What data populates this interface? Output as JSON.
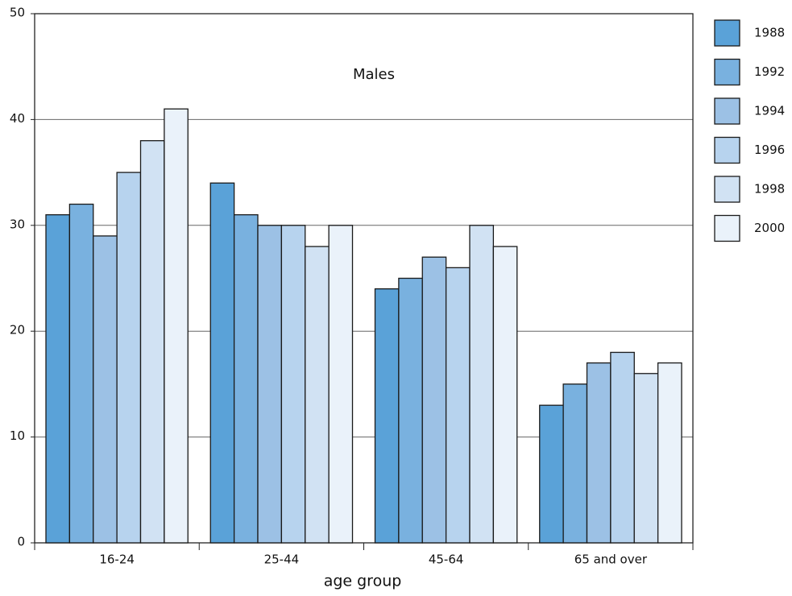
{
  "chart_data": {
    "type": "bar",
    "title": "Males",
    "x_label": "age group",
    "categories": [
      "16-24",
      "25-44",
      "45-64",
      "65 and over"
    ],
    "series": [
      {
        "name": "1988",
        "color": "#5aa2d8",
        "values": [
          31,
          34,
          24,
          13
        ]
      },
      {
        "name": "1992",
        "color": "#79b1df",
        "values": [
          32,
          31,
          25,
          15
        ]
      },
      {
        "name": "1994",
        "color": "#9cc1e5",
        "values": [
          29,
          30,
          27,
          17
        ]
      },
      {
        "name": "1996",
        "color": "#b7d3ee",
        "values": [
          35,
          30,
          26,
          18
        ]
      },
      {
        "name": "1998",
        "color": "#d1e2f3",
        "values": [
          38,
          28,
          30,
          16
        ]
      },
      {
        "name": "2000",
        "color": "#eaf2fa",
        "values": [
          41,
          30,
          28,
          17
        ]
      }
    ],
    "ylim": [
      0,
      50
    ],
    "yticks": [
      0,
      10,
      20,
      30,
      40,
      50
    ],
    "grid": true
  }
}
